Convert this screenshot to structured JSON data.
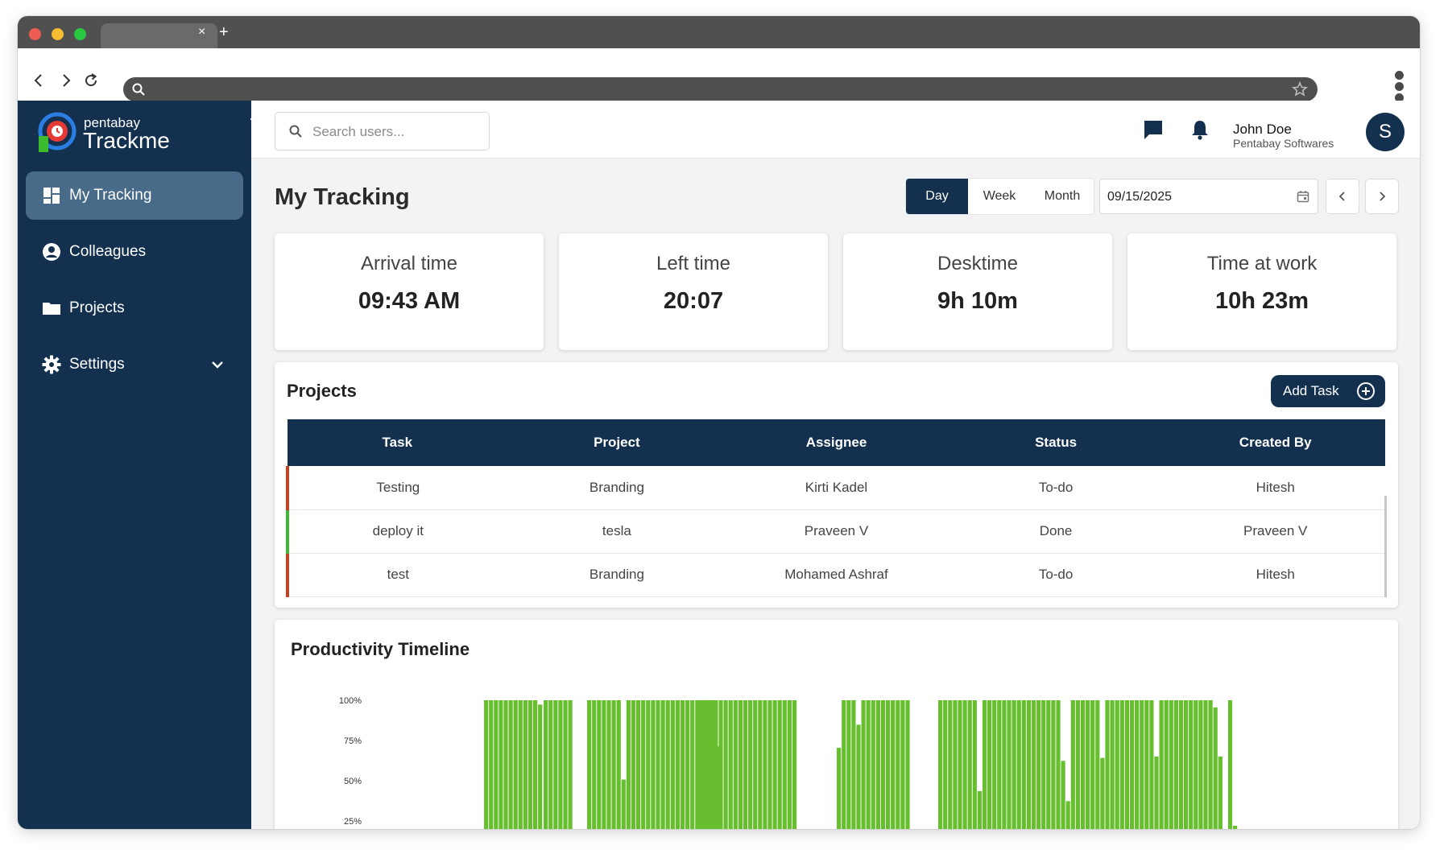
{
  "browser": {
    "tab_close": "×",
    "tab_new": "+"
  },
  "sidebar": {
    "brand_small": "pentabay",
    "brand_big": "Trackme",
    "items": [
      {
        "label": "My Tracking",
        "icon": "dashboard-icon",
        "active": true
      },
      {
        "label": "Colleagues",
        "icon": "user-circle-icon",
        "active": false
      },
      {
        "label": "Projects",
        "icon": "folder-icon",
        "active": false
      },
      {
        "label": "Settings",
        "icon": "gear-icon",
        "active": false,
        "expandable": true
      }
    ]
  },
  "topbar": {
    "search_placeholder": "Search users...",
    "user_name": "John Doe",
    "user_org": "Pentabay Softwares",
    "avatar_initial": "S"
  },
  "main": {
    "title": "My Tracking",
    "range_tabs": [
      "Day",
      "Week",
      "Month"
    ],
    "selected_range": "Day",
    "date": "09/15/2025"
  },
  "stats": [
    {
      "label": "Arrival time",
      "value": "09:43 AM"
    },
    {
      "label": "Left time",
      "value": "20:07"
    },
    {
      "label": "Desktime",
      "value": "9h 10m"
    },
    {
      "label": "Time at work",
      "value": "10h 23m"
    }
  ],
  "projects": {
    "title": "Projects",
    "add_task_label": "Add Task",
    "columns": [
      "Task",
      "Project",
      "Assignee",
      "Status",
      "Created By"
    ],
    "rows": [
      [
        "Testing",
        "Branding",
        "Kirti Kadel",
        "To-do",
        "Hitesh"
      ],
      [
        "deploy it",
        "tesla",
        "Praveen V",
        "Done",
        "Praveen V"
      ],
      [
        "test",
        "Branding",
        "Mohamed Ashraf",
        "To-do",
        "Hitesh"
      ]
    ]
  },
  "timeline": {
    "title": "Productivity Timeline"
  },
  "colors": {
    "navy": "#13304f",
    "active_item": "#486b89",
    "bar_green": "#67bf2f",
    "todo_accent": "#c94020",
    "done_accent": "#3dbb2f"
  },
  "chart_data": {
    "type": "bar",
    "title": "Productivity Timeline",
    "y_ticks": [
      "100%",
      "75%",
      "50%",
      "25%"
    ],
    "ylim": [
      0,
      100
    ],
    "bar_groups": [
      [
        100,
        100,
        100,
        100,
        100,
        100,
        100,
        100,
        100,
        100,
        100,
        97
      ],
      [
        100,
        100,
        100,
        100,
        100,
        100
      ],
      [
        100,
        100,
        100,
        100,
        100,
        100,
        100,
        45,
        100,
        100,
        100,
        100,
        100,
        100,
        100,
        100,
        100,
        100,
        100,
        100,
        100,
        100,
        100,
        100,
        100,
        100,
        68
      ],
      [
        100,
        100,
        100,
        100,
        100,
        100,
        100,
        100,
        100,
        100,
        100,
        100,
        100,
        100,
        100,
        100,
        100,
        100,
        100,
        100
      ],
      [
        67,
        100,
        100,
        100,
        83,
        100,
        100,
        100,
        100,
        100,
        100,
        100,
        100,
        100,
        100
      ],
      [
        100,
        100,
        100,
        100,
        100,
        100,
        100,
        100,
        37,
        100,
        100,
        100,
        100,
        100,
        100,
        100,
        100,
        100,
        100,
        100,
        100,
        100,
        100,
        100,
        100,
        58,
        30,
        100,
        100,
        100,
        100,
        100,
        100,
        60,
        100,
        100,
        100,
        100,
        100,
        100,
        100,
        100,
        100,
        100,
        61,
        100,
        100,
        100,
        100,
        100,
        100,
        100,
        100,
        100,
        100,
        100,
        95,
        61,
        10,
        100,
        13
      ]
    ]
  }
}
